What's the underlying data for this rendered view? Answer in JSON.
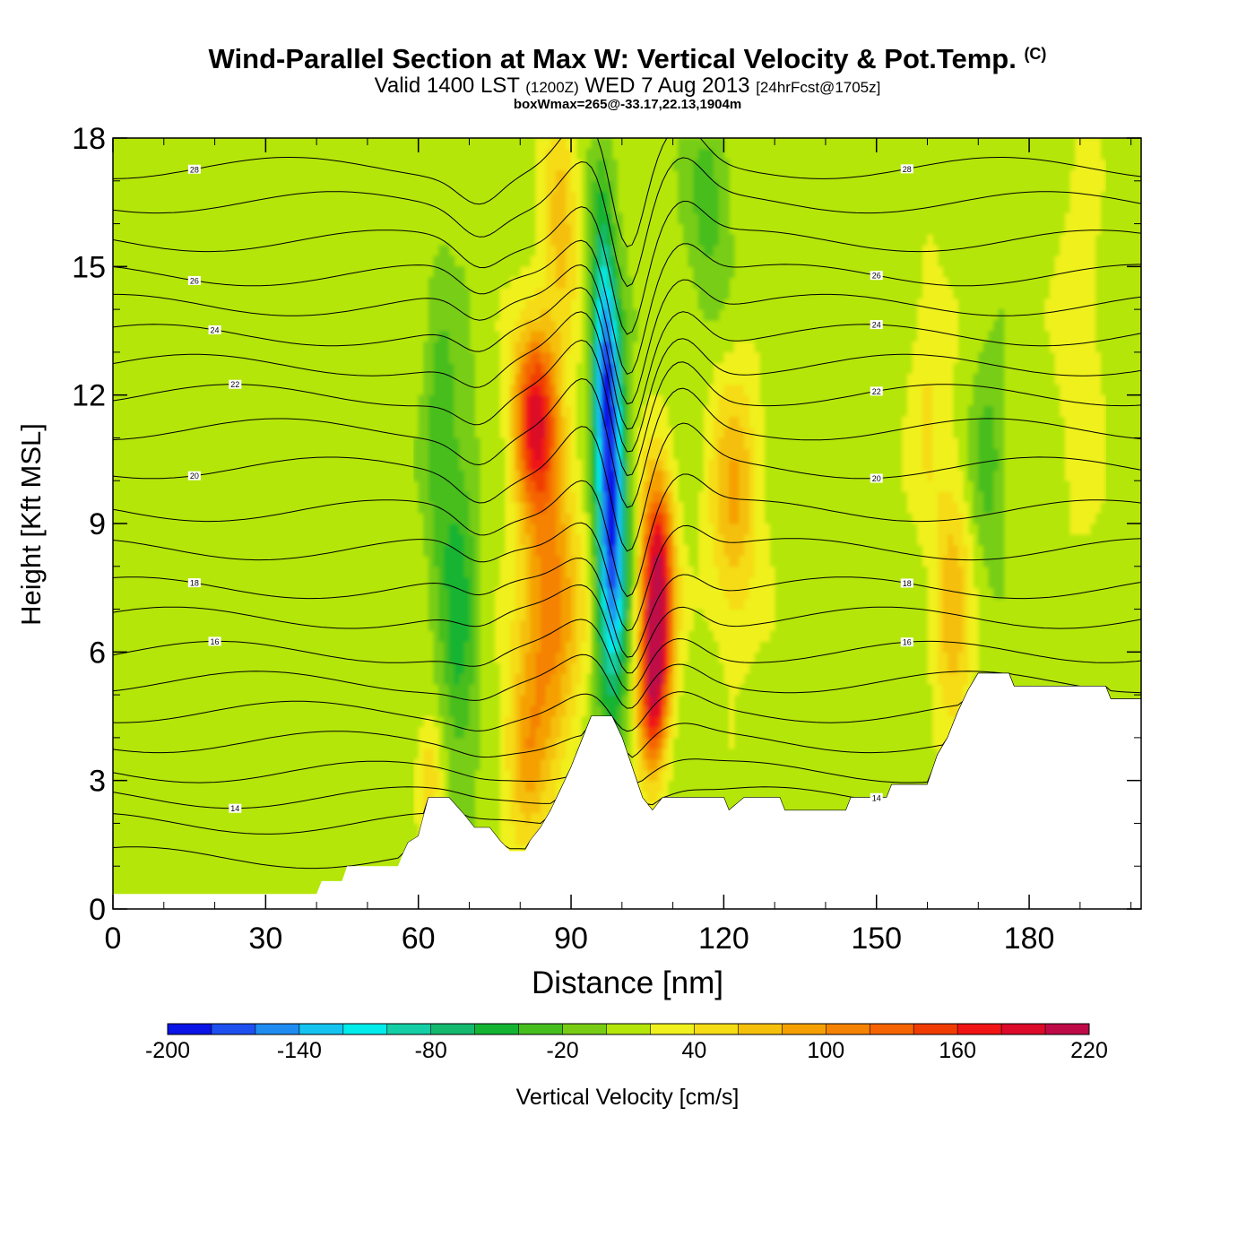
{
  "header": {
    "title": "Wind-Parallel Section at Max W: Vertical Velocity & Pot.Temp.",
    "copyright": "(C)",
    "valid_prefix": "Valid 1400 LST",
    "valid_utc": "(1200Z)",
    "valid_day": "WED 7 Aug 2013",
    "forecast": "[24hrFcst@1705z]",
    "box_info": "boxWmax=265@-33.17,22.13,1904m"
  },
  "colors": {
    "palette": [
      "#0a14e6",
      "#1e50f0",
      "#1e8cf0",
      "#14c3f0",
      "#00ebeb",
      "#14cfa5",
      "#14b96e",
      "#14b432",
      "#46be1e",
      "#78cd14",
      "#b4e60a",
      "#f0f01e",
      "#f5dc14",
      "#f5c00a",
      "#f5a000",
      "#f58200",
      "#f56400",
      "#f03c00",
      "#f01414",
      "#dc0a28",
      "#be0a46"
    ],
    "terrain": "#ffffff",
    "contour": "#000000"
  },
  "chart_data": {
    "type": "heatmap",
    "title": "Wind-Parallel Section at Max W: Vertical Velocity & Pot.Temp.",
    "xlabel": "Distance [nm]",
    "ylabel": "Height [Kft MSL]",
    "xlim": [
      0,
      202
    ],
    "ylim": [
      0,
      18
    ],
    "xticks": [
      0,
      30,
      60,
      90,
      120,
      150,
      180
    ],
    "yticks": [
      0,
      3,
      6,
      9,
      12,
      15,
      18
    ],
    "colorbar": {
      "label": "Vertical Velocity [cm/s]",
      "min": -200,
      "max": 220,
      "step": 20,
      "tick_values": [
        -200,
        -140,
        -80,
        -20,
        40,
        100,
        160,
        220
      ],
      "tick_labels": [
        "-200",
        "-140",
        "-80",
        "-20",
        "40",
        "100",
        "160",
        "220"
      ]
    },
    "w_features": [
      {
        "name": "downdraft core",
        "x": 98,
        "y": 8.5,
        "value": -190,
        "sx": 2.0,
        "sy": 2.6
      },
      {
        "name": "downdraft upper",
        "x": 97,
        "y": 12.5,
        "value": -130,
        "sx": 1.8,
        "sy": 1.8
      },
      {
        "name": "downdraft top",
        "x": 96,
        "y": 15,
        "value": -60,
        "sx": 1.6,
        "sy": 1.8
      },
      {
        "name": "updraft east",
        "x": 107,
        "y": 7.5,
        "value": 210,
        "sx": 2.2,
        "sy": 1.8
      },
      {
        "name": "updraft east low",
        "x": 106,
        "y": 5,
        "value": 130,
        "sx": 2.0,
        "sy": 1.3
      },
      {
        "name": "updraft west upper",
        "x": 83,
        "y": 11.5,
        "value": 170,
        "sx": 3.0,
        "sy": 1.5
      },
      {
        "name": "updraft west mid",
        "x": 86,
        "y": 7,
        "value": 110,
        "sx": 4.0,
        "sy": 2.2
      },
      {
        "name": "updraft west low",
        "x": 81,
        "y": 3.5,
        "value": 70,
        "sx": 3.0,
        "sy": 1.5
      },
      {
        "name": "updraft west top",
        "x": 88,
        "y": 15.8,
        "value": 60,
        "sx": 2.5,
        "sy": 2.0
      },
      {
        "name": "lee updraft",
        "x": 122,
        "y": 9.5,
        "value": 70,
        "sx": 3.5,
        "sy": 2.2
      },
      {
        "name": "sink band",
        "x": 68,
        "y": 7,
        "value": -55,
        "sx": 2.5,
        "sy": 3.5
      },
      {
        "name": "sink band upper",
        "x": 64,
        "y": 11,
        "value": -40,
        "sx": 2.0,
        "sy": 2.5
      },
      {
        "name": "upper sink",
        "x": 117,
        "y": 16.5,
        "value": -40,
        "sx": 3.0,
        "sy": 1.8
      },
      {
        "name": "east updraft",
        "x": 165,
        "y": 7,
        "value": 60,
        "sx": 2.5,
        "sy": 2.5
      },
      {
        "name": "east sink",
        "x": 172,
        "y": 10.5,
        "value": -45,
        "sx": 2.5,
        "sy": 1.5
      },
      {
        "name": "east updraft upper",
        "x": 160,
        "y": 12,
        "value": 30,
        "sx": 2.5,
        "sy": 2.5
      },
      {
        "name": "far east updraft",
        "x": 190,
        "y": 13,
        "value": 30,
        "sx": 3.0,
        "sy": 3.0
      },
      {
        "name": "low updraft",
        "x": 62,
        "y": 3,
        "value": 50,
        "sx": 1.8,
        "sy": 1.0
      }
    ],
    "terrain_kft": [
      [
        0,
        0.35
      ],
      [
        40,
        0.35
      ],
      [
        41,
        0.65
      ],
      [
        45,
        0.65
      ],
      [
        46,
        1.0
      ],
      [
        56,
        1.0
      ],
      [
        57,
        1.3
      ],
      [
        58,
        1.55
      ],
      [
        60,
        1.7
      ],
      [
        62,
        2.6
      ],
      [
        66,
        2.6
      ],
      [
        69,
        2.2
      ],
      [
        71,
        1.9
      ],
      [
        74,
        1.9
      ],
      [
        76,
        1.6
      ],
      [
        78,
        1.35
      ],
      [
        81,
        1.35
      ],
      [
        82,
        1.6
      ],
      [
        84,
        1.9
      ],
      [
        86,
        2.3
      ],
      [
        88,
        2.8
      ],
      [
        90,
        3.3
      ],
      [
        92,
        3.9
      ],
      [
        94,
        4.5
      ],
      [
        98,
        4.5
      ],
      [
        100,
        4.0
      ],
      [
        102,
        3.3
      ],
      [
        104,
        2.6
      ],
      [
        106,
        2.3
      ],
      [
        108,
        2.6
      ],
      [
        120,
        2.6
      ],
      [
        121,
        2.3
      ],
      [
        124,
        2.6
      ],
      [
        131,
        2.6
      ],
      [
        132,
        2.3
      ],
      [
        144,
        2.3
      ],
      [
        145,
        2.6
      ],
      [
        152,
        2.6
      ],
      [
        153,
        2.9
      ],
      [
        160,
        2.9
      ],
      [
        162,
        3.6
      ],
      [
        164,
        4.0
      ],
      [
        166,
        4.6
      ],
      [
        168,
        5.1
      ],
      [
        170,
        5.5
      ],
      [
        176,
        5.5
      ],
      [
        177,
        5.2
      ],
      [
        195,
        5.2
      ],
      [
        196,
        4.9
      ],
      [
        202,
        4.9
      ]
    ],
    "theta_contours": [
      {
        "base": 1.2,
        "label": ""
      },
      {
        "base": 2.0,
        "label": ""
      },
      {
        "base": 2.6,
        "label": "14"
      },
      {
        "base": 3.2,
        "label": ""
      },
      {
        "base": 3.9,
        "label": ""
      },
      {
        "base": 4.6,
        "label": ""
      },
      {
        "base": 5.3,
        "label": ""
      },
      {
        "base": 6.0,
        "label": "16"
      },
      {
        "base": 6.8,
        "label": ""
      },
      {
        "base": 7.5,
        "label": "18"
      },
      {
        "base": 8.4,
        "label": ""
      },
      {
        "base": 9.3,
        "label": ""
      },
      {
        "base": 10.3,
        "label": "20"
      },
      {
        "base": 11.2,
        "label": ""
      },
      {
        "base": 12.0,
        "label": "22"
      },
      {
        "base": 12.7,
        "label": ""
      },
      {
        "base": 13.4,
        "label": "24"
      },
      {
        "base": 14.1,
        "label": ""
      },
      {
        "base": 14.8,
        "label": "26"
      },
      {
        "base": 15.6,
        "label": ""
      },
      {
        "base": 16.5,
        "label": ""
      },
      {
        "base": 17.3,
        "label": "28"
      }
    ]
  }
}
